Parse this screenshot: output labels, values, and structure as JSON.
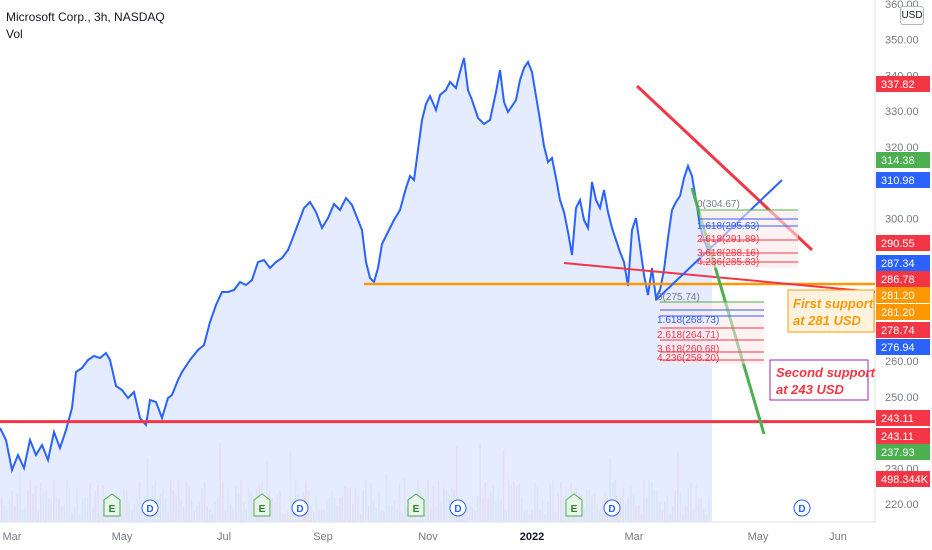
{
  "header": {
    "symbol": "Microsoft Corp., 3h, NASDAQ",
    "volume_label": "Vol",
    "currency": "USD"
  },
  "colors": {
    "price_line": "#2962ff",
    "area_fill": "#dce5ff",
    "resistance_red": "#f23645",
    "support_orange": "#ff9800",
    "trend_green": "#4caf50",
    "trend_blue": "#2962ff",
    "note_orange": "#ff9800",
    "note_purple": "#9c27b0",
    "volume_up": "#a5d6a7",
    "volume_down": "#ef9a9a"
  },
  "chart_data": {
    "type": "line",
    "title": "Microsoft Corp., 3h, NASDAQ",
    "ylim": [
      215,
      360
    ],
    "y_ticks": [
      220,
      230,
      250,
      260,
      280,
      300,
      310,
      320,
      330,
      340,
      350,
      360
    ],
    "x_ticks": [
      "Mar",
      "May",
      "Jul",
      "Sep",
      "Nov",
      "2022",
      "Mar",
      "May",
      "Jun"
    ],
    "series": [
      {
        "values": [
          [
            "Mar",
            240
          ],
          [
            "Apr",
            258
          ],
          [
            "May",
            249
          ],
          [
            "May",
            243
          ],
          [
            "Jun",
            253
          ],
          [
            "Jul",
            270
          ],
          [
            "Aug",
            287
          ],
          [
            "Aug",
            291
          ],
          [
            "Sep",
            302
          ],
          [
            "Sep",
            300
          ],
          [
            "Oct",
            281
          ],
          [
            "Oct",
            296
          ],
          [
            "Nov",
            327
          ],
          [
            "Nov",
            343
          ],
          [
            "Dec",
            334
          ],
          [
            "2022",
            341
          ],
          [
            "2022",
            315
          ],
          [
            "Feb",
            297
          ],
          [
            "Feb",
            309
          ],
          [
            "Mar",
            285
          ],
          [
            "Mar",
            297
          ],
          [
            "Mar",
            280
          ],
          [
            "Apr",
            313
          ],
          [
            "Apr",
            292
          ]
        ]
      }
    ],
    "volume_label": "Vol",
    "fibonacci_upper": [
      "0(304.67)",
      "1.618(295.63)",
      "2.618(291.89)",
      "3.618(288.16)",
      "4.236(285.83)"
    ],
    "fibonacci_lower": [
      "0(275.74)",
      "1.618(268.73)",
      "2.618(264.71)",
      "3.618(260.68)",
      "4.236(258.20)"
    ],
    "horizontal_levels": [
      {
        "price": 243.11,
        "color": "red"
      },
      {
        "price": 281.2,
        "color": "orange"
      }
    ],
    "annotations": [
      {
        "text": [
          "First support",
          "at 281 USD"
        ],
        "color": "orange"
      },
      {
        "text": [
          "Second support",
          "at 243 USD"
        ],
        "color": "purple"
      }
    ],
    "price_labels": [
      {
        "value": "337.82",
        "color": "#f23645"
      },
      {
        "value": "314.38",
        "color": "#4caf50"
      },
      {
        "value": "310.98",
        "color": "#2962ff"
      },
      {
        "value": "290.55",
        "color": "#f23645"
      },
      {
        "value": "287.34",
        "color": "#2962ff"
      },
      {
        "value": "286.78",
        "color": "#f23645"
      },
      {
        "value": "281.20",
        "color": "#ff9800"
      },
      {
        "value": "281.20",
        "color": "#ff9800"
      },
      {
        "value": "278.74",
        "color": "#f23645"
      },
      {
        "value": "276.94",
        "color": "#2962ff"
      },
      {
        "value": "243.11",
        "color": "#f23645"
      },
      {
        "value": "243.11",
        "color": "#f23645"
      },
      {
        "value": "237.93",
        "color": "#4caf50"
      },
      {
        "value": "498.344K",
        "color": "#f23645"
      }
    ],
    "event_markers": [
      "E",
      "D",
      "E",
      "D",
      "E",
      "D",
      "E",
      "D",
      "D"
    ]
  }
}
